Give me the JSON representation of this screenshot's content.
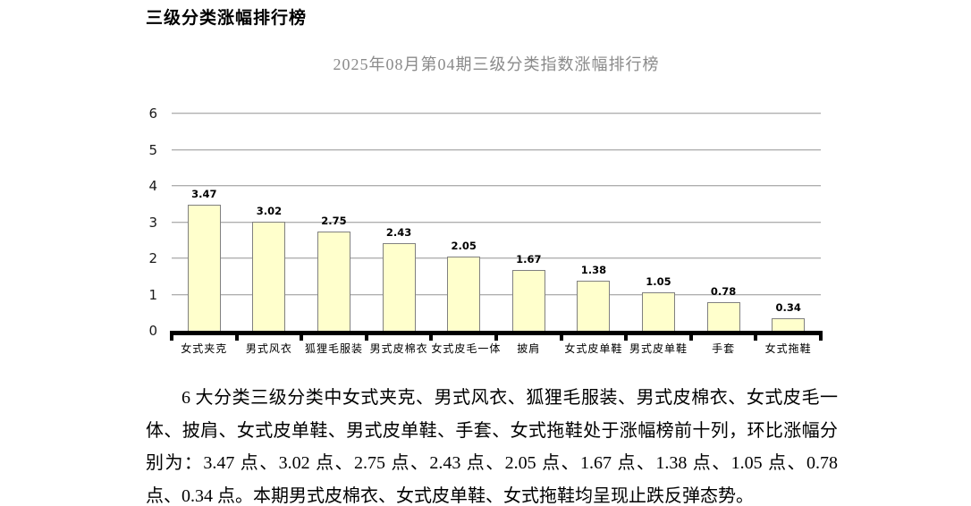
{
  "page": {
    "title": "三级分类涨幅排行榜",
    "summary_paragraph": "6 大分类三级分类中女式夹克、男式风衣、狐狸毛服装、男式皮棉衣、女式皮毛一体、披肩、女式皮单鞋、男式皮单鞋、手套、女式拖鞋处于涨幅榜前十列，环比涨幅分别为：3.47 点、3.02 点、2.75 点、2.43 点、2.05 点、1.67 点、1.38 点、1.05 点、0.78 点、0.34 点。本期男式皮棉衣、女式皮单鞋、女式拖鞋均呈现止跌反弹态势。"
  },
  "chart_data": {
    "type": "bar",
    "title": "2025年08月第04期三级分类指数涨幅排行榜",
    "categories": [
      "女式夹克",
      "男式风衣",
      "狐狸毛服装",
      "男式皮棉衣",
      "女式皮毛一体",
      "披肩",
      "女式皮单鞋",
      "男式皮单鞋",
      "手套",
      "女式拖鞋"
    ],
    "values": [
      3.47,
      3.02,
      2.75,
      2.43,
      2.05,
      1.67,
      1.38,
      1.05,
      0.78,
      0.34
    ],
    "xlabel": "",
    "ylabel": "",
    "ylim": [
      0,
      6
    ],
    "yticks": [
      0,
      1,
      2,
      3,
      4,
      5,
      6
    ],
    "grid": true,
    "legend": false,
    "colors": {
      "bar_fill": "#FFFFCC",
      "bar_border": "#808080",
      "gridline": "#AEAEAE",
      "axis": "#000000",
      "title_text": "#8A8A8A",
      "label_text": "#000000"
    }
  }
}
